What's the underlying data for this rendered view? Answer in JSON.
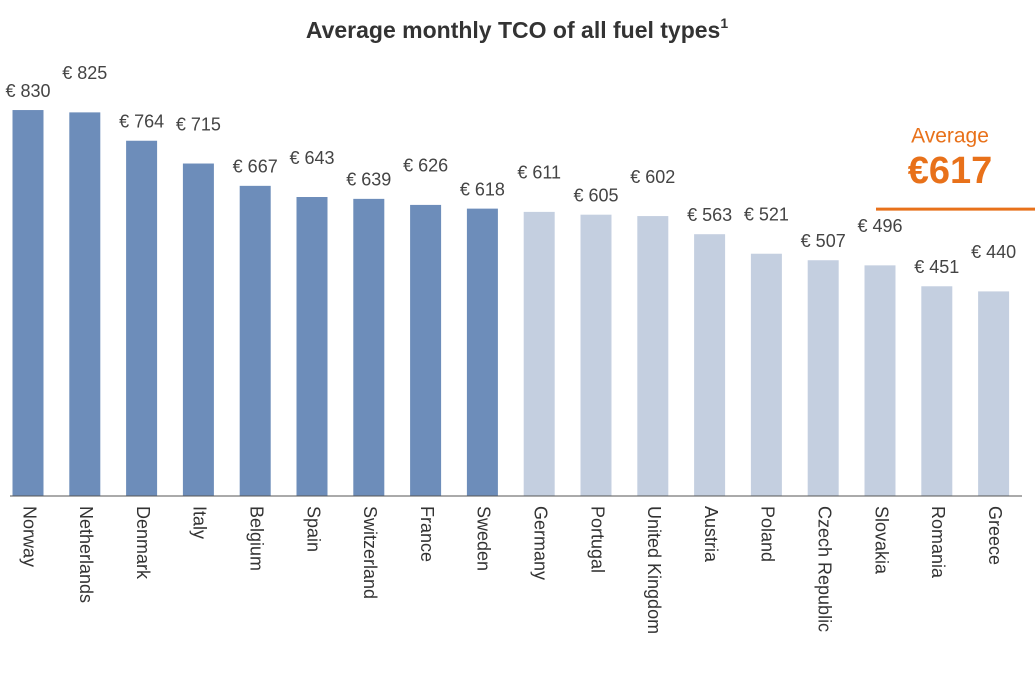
{
  "chart_data": {
    "type": "bar",
    "title": "Average monthly TCO of all fuel types",
    "title_superscript": "1",
    "categories": [
      "Norway",
      "Netherlands",
      "Denmark",
      "Italy",
      "Belgium",
      "Spain",
      "Switzerland",
      "France",
      "Sweden",
      "Germany",
      "Portugal",
      "United Kingdom",
      "Austria",
      "Poland",
      "Czech Republic",
      "Slovakia",
      "Romania",
      "Greece"
    ],
    "values": [
      830,
      825,
      764,
      715,
      667,
      643,
      639,
      626,
      618,
      611,
      605,
      602,
      563,
      521,
      507,
      496,
      451,
      440
    ],
    "value_labels": [
      "€ 830",
      "€ 825",
      "€ 764",
      "€ 715",
      "€ 667",
      "€ 643",
      "€ 639",
      "€ 626",
      "€ 618",
      "€ 611",
      "€ 605",
      "€ 602",
      "€ 563",
      "€ 521",
      "€ 507",
      "€ 496",
      "€ 451",
      "€ 440"
    ],
    "colors": [
      "#6d8dba",
      "#6d8dba",
      "#6d8dba",
      "#6d8dba",
      "#6d8dba",
      "#6d8dba",
      "#6d8dba",
      "#6d8dba",
      "#6d8dba",
      "#c4cfe0",
      "#c4cfe0",
      "#c4cfe0",
      "#c4cfe0",
      "#c4cfe0",
      "#c4cfe0",
      "#c4cfe0",
      "#c4cfe0",
      "#c4cfe0"
    ],
    "ylim": [
      0,
      1000
    ],
    "average": {
      "label": "Average",
      "value": 617,
      "value_label": "€617",
      "color": "#e8711a"
    }
  }
}
